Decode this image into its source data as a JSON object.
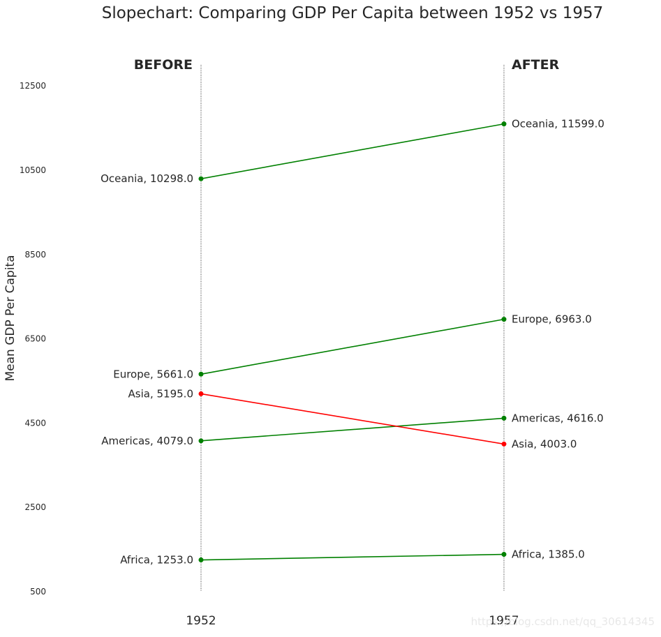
{
  "chart_data": {
    "type": "line",
    "title": "Slopechart: Comparing GDP Per Capita between 1952 vs 1957",
    "ylabel": "Mean GDP Per Capita",
    "xlabel": "",
    "categories": [
      "1952",
      "1957"
    ],
    "ylim": [
      500,
      13000
    ],
    "yticks": [
      500,
      2500,
      4500,
      6500,
      8500,
      10500,
      12500
    ],
    "headers": {
      "before": "BEFORE",
      "after": "AFTER"
    },
    "colors": {
      "increase": "#008000",
      "decrease": "#ff0000",
      "vline": "#333333"
    },
    "series": [
      {
        "name": "Africa",
        "values": [
          1253.0,
          1385.0
        ],
        "labels": [
          "Africa, 1253.0",
          "Africa, 1385.0"
        ]
      },
      {
        "name": "Americas",
        "values": [
          4079.0,
          4616.0
        ],
        "labels": [
          "Americas, 4079.0",
          "Americas, 4616.0"
        ]
      },
      {
        "name": "Asia",
        "values": [
          5195.0,
          4003.0
        ],
        "labels": [
          "Asia, 5195.0",
          "Asia, 4003.0"
        ]
      },
      {
        "name": "Europe",
        "values": [
          5661.0,
          6963.0
        ],
        "labels": [
          "Europe, 5661.0",
          "Europe, 6963.0"
        ]
      },
      {
        "name": "Oceania",
        "values": [
          10298.0,
          11599.0
        ],
        "labels": [
          "Oceania, 10298.0",
          "Oceania, 11599.0"
        ]
      }
    ],
    "grid": false,
    "legend": "none"
  },
  "watermark": "https://blog.csdn.net/qq_30614345"
}
